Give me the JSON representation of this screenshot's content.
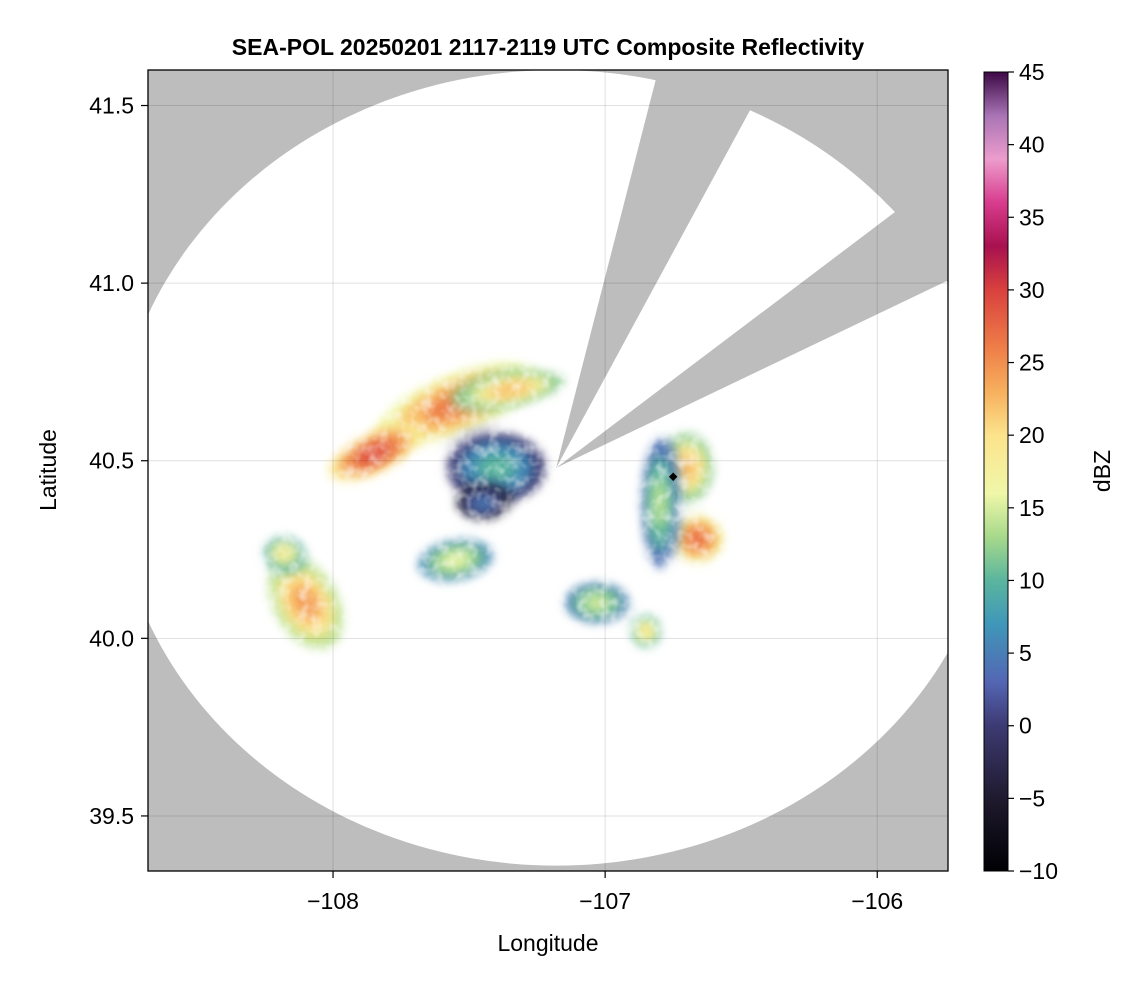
{
  "chart_data": {
    "type": "heatmap",
    "title": "SEA-POL 20250201 2117-2119 UTC Composite Reflectivity",
    "xlabel": "Longitude",
    "ylabel": "Latitude",
    "xlim": [
      -108.68,
      -105.74
    ],
    "ylim": [
      39.345,
      41.6
    ],
    "x_ticks": [
      -108,
      -107,
      -106
    ],
    "x_tick_labels": [
      "−108",
      "−107",
      "−106"
    ],
    "y_ticks": [
      39.5,
      40.0,
      40.5,
      41.0,
      41.5
    ],
    "y_tick_labels": [
      "39.5",
      "40.0",
      "40.5",
      "41.0",
      "41.5"
    ],
    "grid": true,
    "radar_site": {
      "lon": -107.18,
      "lat": 40.48
    },
    "radar_range_deg_lon": 1.625,
    "radar_range_deg_lat": 1.12,
    "no_data_color": "#bdbdbd",
    "clear_color": "#ffffff",
    "blocked_sectors": [
      {
        "from_bearing_deg": 13,
        "to_bearing_deg": 26
      },
      {
        "from_bearing_deg": 50,
        "to_bearing_deg": 62
      }
    ],
    "marker": {
      "lon": -106.75,
      "lat": 40.455
    },
    "colorbar": {
      "label": "dBZ",
      "min": -10,
      "max": 45,
      "ticks": [
        -10,
        -5,
        0,
        5,
        10,
        15,
        20,
        25,
        30,
        35,
        40,
        45
      ],
      "tick_labels": [
        "−10",
        "−5",
        "0",
        "5",
        "10",
        "15",
        "20",
        "25",
        "30",
        "35",
        "40",
        "45"
      ],
      "color_stops": [
        [
          -10,
          "#000004"
        ],
        [
          -5,
          "#1f1a2e"
        ],
        [
          0,
          "#3d3a73"
        ],
        [
          3,
          "#5466b3"
        ],
        [
          7,
          "#3f97b9"
        ],
        [
          10,
          "#5bb59e"
        ],
        [
          13,
          "#a7d98b"
        ],
        [
          16,
          "#f0f7a8"
        ],
        [
          20,
          "#fce38c"
        ],
        [
          23,
          "#f7b05d"
        ],
        [
          26,
          "#ee7e48"
        ],
        [
          30,
          "#d9413e"
        ],
        [
          33,
          "#a8114f"
        ],
        [
          36,
          "#d83c8d"
        ],
        [
          39,
          "#ec9ccc"
        ],
        [
          42,
          "#a974b5"
        ],
        [
          45,
          "#3d0845"
        ]
      ]
    },
    "echo_cells": [
      {
        "lon": -107.55,
        "lat": 40.66,
        "rx": 0.3,
        "ry": 0.085,
        "rot": -22,
        "dbz": 24
      },
      {
        "lon": -107.85,
        "lat": 40.52,
        "rx": 0.18,
        "ry": 0.06,
        "rot": -25,
        "dbz": 27
      },
      {
        "lon": -107.35,
        "lat": 40.7,
        "rx": 0.2,
        "ry": 0.05,
        "rot": -10,
        "dbz": 20
      },
      {
        "lon": -107.4,
        "lat": 40.48,
        "rx": 0.18,
        "ry": 0.1,
        "rot": 0,
        "dbz": 8
      },
      {
        "lon": -107.45,
        "lat": 40.38,
        "rx": 0.1,
        "ry": 0.05,
        "rot": 0,
        "dbz": 3
      },
      {
        "lon": -108.1,
        "lat": 40.1,
        "rx": 0.12,
        "ry": 0.14,
        "rot": -30,
        "dbz": 22
      },
      {
        "lon": -108.18,
        "lat": 40.24,
        "rx": 0.08,
        "ry": 0.05,
        "rot": 0,
        "dbz": 17
      },
      {
        "lon": -107.55,
        "lat": 40.22,
        "rx": 0.14,
        "ry": 0.06,
        "rot": -10,
        "dbz": 14
      },
      {
        "lon": -107.03,
        "lat": 40.1,
        "rx": 0.12,
        "ry": 0.06,
        "rot": 0,
        "dbz": 13
      },
      {
        "lon": -106.7,
        "lat": 40.48,
        "rx": 0.1,
        "ry": 0.1,
        "rot": 0,
        "dbz": 20
      },
      {
        "lon": -106.66,
        "lat": 40.28,
        "rx": 0.1,
        "ry": 0.07,
        "rot": 0,
        "dbz": 25
      },
      {
        "lon": -106.8,
        "lat": 40.38,
        "rx": 0.07,
        "ry": 0.18,
        "rot": 0,
        "dbz": 12
      },
      {
        "lon": -106.85,
        "lat": 40.02,
        "rx": 0.06,
        "ry": 0.05,
        "rot": 0,
        "dbz": 18
      }
    ]
  }
}
